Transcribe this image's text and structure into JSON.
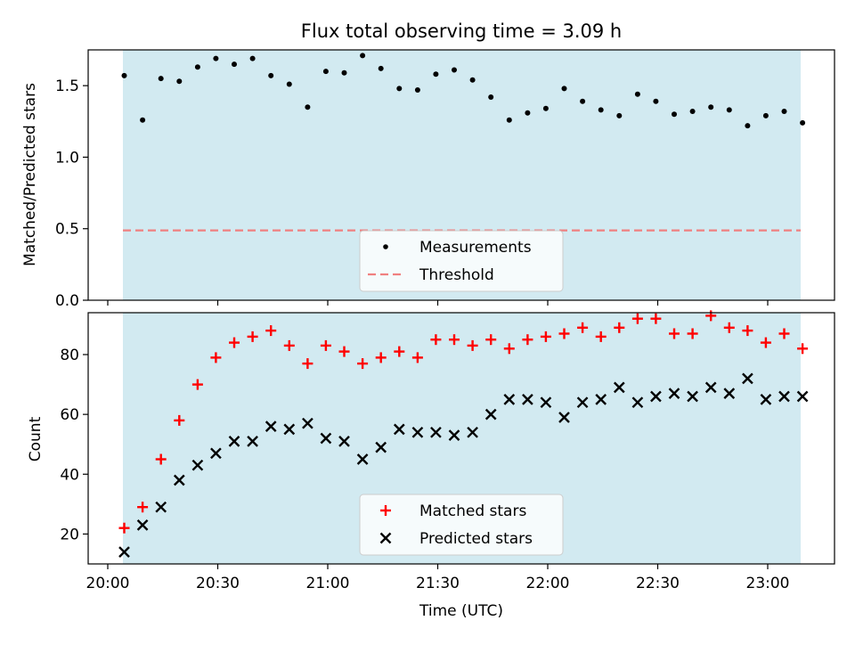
{
  "figure": {
    "title": "Flux total observing time = 3.09 h"
  },
  "chart_data": [
    {
      "type": "scatter",
      "ylabel": "Matched/Predicted stars",
      "xlabel": "",
      "ylim": [
        0,
        1.75
      ],
      "yticks": [
        "0.0",
        "0.5",
        "1.0",
        "1.5"
      ],
      "xticks": [
        "20:00",
        "20:30",
        "21:00",
        "21:30",
        "22:00",
        "22:30",
        "23:00"
      ],
      "x_unit": "minutes after 20:00 UTC",
      "x": [
        4.5,
        9.5,
        14.5,
        19.5,
        24.5,
        29.5,
        34.5,
        39.5,
        44.5,
        49.5,
        54.5,
        59.5,
        64.5,
        69.5,
        74.5,
        79.5,
        84.5,
        89.5,
        94.5,
        99.5,
        104.5,
        109.5,
        114.5,
        119.5,
        124.5,
        129.5,
        134.5,
        139.5,
        144.5,
        149.5,
        154.5,
        159.5,
        164.5,
        169.5,
        174.5,
        179.5,
        184.5,
        189.5
      ],
      "series": [
        {
          "name": "Measurements",
          "marker": "dot",
          "color": "#000000",
          "values": [
            1.57,
            1.26,
            1.55,
            1.53,
            1.63,
            1.69,
            1.65,
            1.69,
            1.57,
            1.51,
            1.35,
            1.6,
            1.59,
            1.71,
            1.62,
            1.48,
            1.47,
            1.58,
            1.61,
            1.54,
            1.42,
            1.26,
            1.31,
            1.34,
            1.48,
            1.39,
            1.33,
            1.29,
            1.44,
            1.39,
            1.3,
            1.32,
            1.35,
            1.33,
            1.22,
            1.29,
            1.32,
            1.24
          ]
        },
        {
          "name": "Threshold",
          "marker": "dashed-line",
          "color": "#f08080",
          "values": [
            0.5,
            0.5
          ]
        }
      ],
      "legend": "lower-center",
      "observing_span_color": "#add8e6"
    },
    {
      "type": "scatter",
      "ylabel": "Count",
      "xlabel": "Time (UTC)",
      "ylim": [
        10,
        94
      ],
      "yticks": [
        "20",
        "40",
        "60",
        "80"
      ],
      "xticks": [
        "20:00",
        "20:30",
        "21:00",
        "21:30",
        "22:00",
        "22:30",
        "23:00"
      ],
      "x_unit": "minutes after 20:00 UTC",
      "x": [
        4.5,
        9.5,
        14.5,
        19.5,
        24.5,
        29.5,
        34.5,
        39.5,
        44.5,
        49.5,
        54.5,
        59.5,
        64.5,
        69.5,
        74.5,
        79.5,
        84.5,
        89.5,
        94.5,
        99.5,
        104.5,
        109.5,
        114.5,
        119.5,
        124.5,
        129.5,
        134.5,
        139.5,
        144.5,
        149.5,
        154.5,
        159.5,
        164.5,
        169.5,
        174.5,
        179.5,
        184.5,
        189.5
      ],
      "series": [
        {
          "name": "Matched stars",
          "marker": "plus",
          "color": "#ff0000",
          "values": [
            22,
            29,
            45,
            58,
            70,
            79,
            84,
            86,
            88,
            83,
            77,
            83,
            81,
            77,
            79,
            81,
            79,
            85,
            85,
            83,
            85,
            82,
            85,
            86,
            87,
            89,
            86,
            89,
            92,
            92,
            87,
            87,
            93,
            89,
            88,
            84,
            87,
            82
          ]
        },
        {
          "name": "Predicted stars",
          "marker": "x",
          "color": "#000000",
          "values": [
            14,
            23,
            29,
            38,
            43,
            47,
            51,
            51,
            56,
            55,
            57,
            52,
            51,
            45,
            49,
            55,
            54,
            54,
            53,
            54,
            60,
            65,
            65,
            64,
            59,
            64,
            65,
            69,
            64,
            66,
            67,
            66,
            69,
            67,
            72,
            65,
            66,
            66
          ]
        }
      ],
      "legend": "lower-center",
      "observing_span_color": "#add8e6"
    }
  ]
}
